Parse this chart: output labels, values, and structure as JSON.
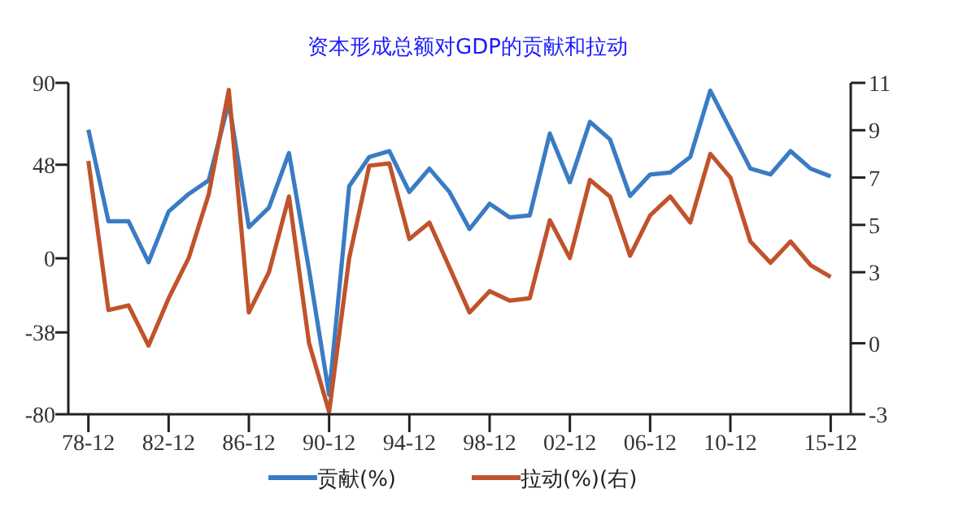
{
  "chart_data": {
    "type": "line",
    "title": "资本形成总额对GDP的贡献和拉动",
    "categories": [
      "78-12",
      null,
      null,
      null,
      "82-12",
      null,
      null,
      null,
      "86-12",
      null,
      null,
      null,
      "90-12",
      null,
      null,
      null,
      "94-12",
      null,
      null,
      null,
      "98-12",
      null,
      null,
      null,
      "02-12",
      null,
      null,
      null,
      "06-12",
      null,
      null,
      null,
      "10-12",
      null,
      null,
      null,
      null,
      "15-12"
    ],
    "series": [
      {
        "name": "贡献(%)",
        "color": "#3a7cc3",
        "values": [
          66,
          19,
          19,
          -2,
          24,
          33,
          40,
          80,
          16,
          26,
          54,
          -6,
          -70,
          37,
          52,
          55,
          34,
          46,
          34,
          15,
          28,
          21,
          22,
          64,
          39,
          70,
          61,
          32,
          43,
          44,
          52,
          86,
          66,
          46,
          43,
          55,
          46,
          42
        ]
      },
      {
        "name": "拉动(%)(右)",
        "color": "#c0532b",
        "axis": "y2",
        "values": [
          7.7,
          1.4,
          1.6,
          -0.1,
          1.9,
          3.6,
          6.3,
          10.7,
          1.3,
          3.0,
          6.2,
          0.0,
          -2.9,
          3.6,
          7.5,
          7.6,
          4.4,
          5.1,
          3.2,
          1.3,
          2.2,
          1.8,
          1.9,
          5.2,
          3.6,
          6.9,
          6.2,
          3.7,
          5.4,
          6.2,
          5.1,
          8.0,
          7.0,
          4.3,
          3.4,
          4.3,
          3.3,
          2.8
        ]
      }
    ],
    "ylim": [
      -80,
      90
    ],
    "yticks": [
      -80,
      -38,
      0,
      48,
      90
    ],
    "y2lim": [
      -3,
      11
    ],
    "y2ticks": [
      -3,
      0,
      3,
      5,
      7,
      9,
      11
    ],
    "legend": "bottom",
    "grid": false,
    "marker": "none",
    "line_style": "solid"
  }
}
